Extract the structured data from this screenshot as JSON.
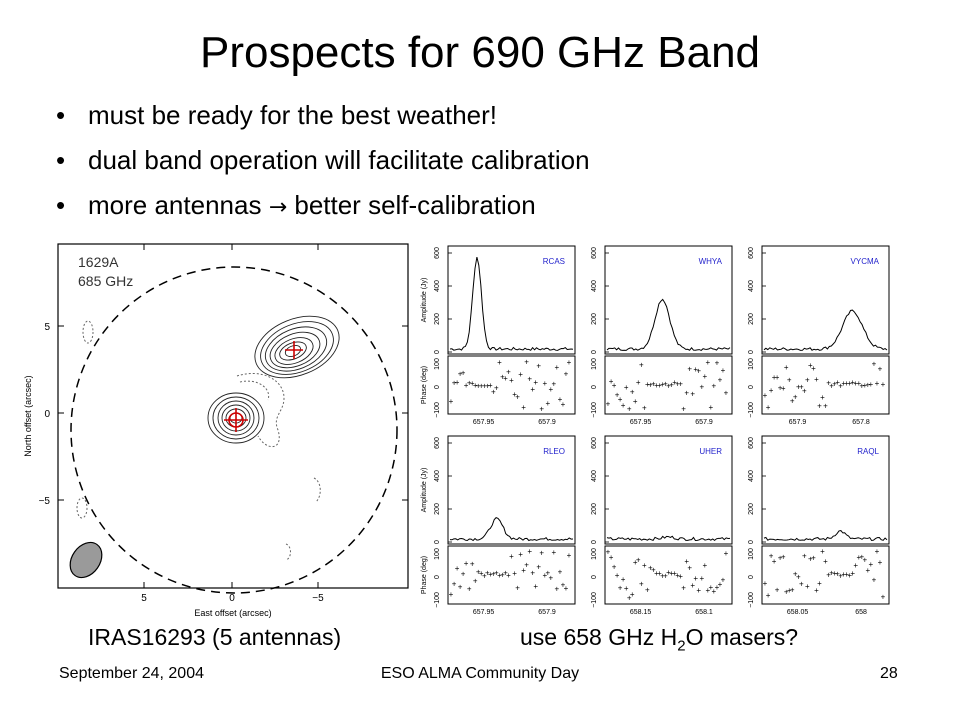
{
  "slide": {
    "title": "Prospects for 690 GHz Band",
    "bullets": [
      {
        "text": "must be ready for the best weather!"
      },
      {
        "text": "dual band operation will facilitate calibration"
      },
      {
        "text_before": "more antennas",
        "arrow": "→",
        "text_after": "better self-calibration"
      }
    ],
    "captions": {
      "left": "IRAS16293 (5 antennas)",
      "right_prefix": "use 658 GHz H",
      "right_sub": "2",
      "right_mid": "O masers?"
    },
    "footer": {
      "date": "September 24, 2004",
      "event": "ESO ALMA Community Day",
      "page": "28"
    }
  },
  "left_map": {
    "label_source": "1629A",
    "label_freq": "685 GHz",
    "xlabel": "East offset (arcsec)",
    "ylabel": "North offset (arcsec)",
    "x_ticks": [
      "5",
      "0",
      "−5"
    ],
    "y_ticks": [
      "5",
      "0",
      "−5"
    ]
  },
  "maser_panels": {
    "amp_ylabel": "Amplitude (Jy)",
    "phase_ylabel": "Phase (deg)",
    "amp_ticks": [
      "0",
      "200",
      "400",
      "600"
    ],
    "phase_ticks": [
      "−100",
      "0",
      "100"
    ],
    "sources": [
      {
        "name": "RCAS",
        "x_ticks": [
          "657.95",
          "657.9"
        ]
      },
      {
        "name": "WHYA",
        "x_ticks": [
          "657.95",
          "657.9"
        ]
      },
      {
        "name": "VYCMA",
        "x_ticks": [
          "657.9",
          "657.8"
        ]
      },
      {
        "name": "RLEO",
        "x_ticks": [
          "657.95",
          "657.9"
        ]
      },
      {
        "name": "UHER",
        "x_ticks": [
          "658.15",
          "658.1"
        ]
      },
      {
        "name": "RAQL",
        "x_ticks": [
          "658.05",
          "658"
        ]
      }
    ]
  },
  "colors": {
    "source_label": "#2222cc",
    "cross": "#cc0000",
    "beam": "#9a9a9a"
  }
}
